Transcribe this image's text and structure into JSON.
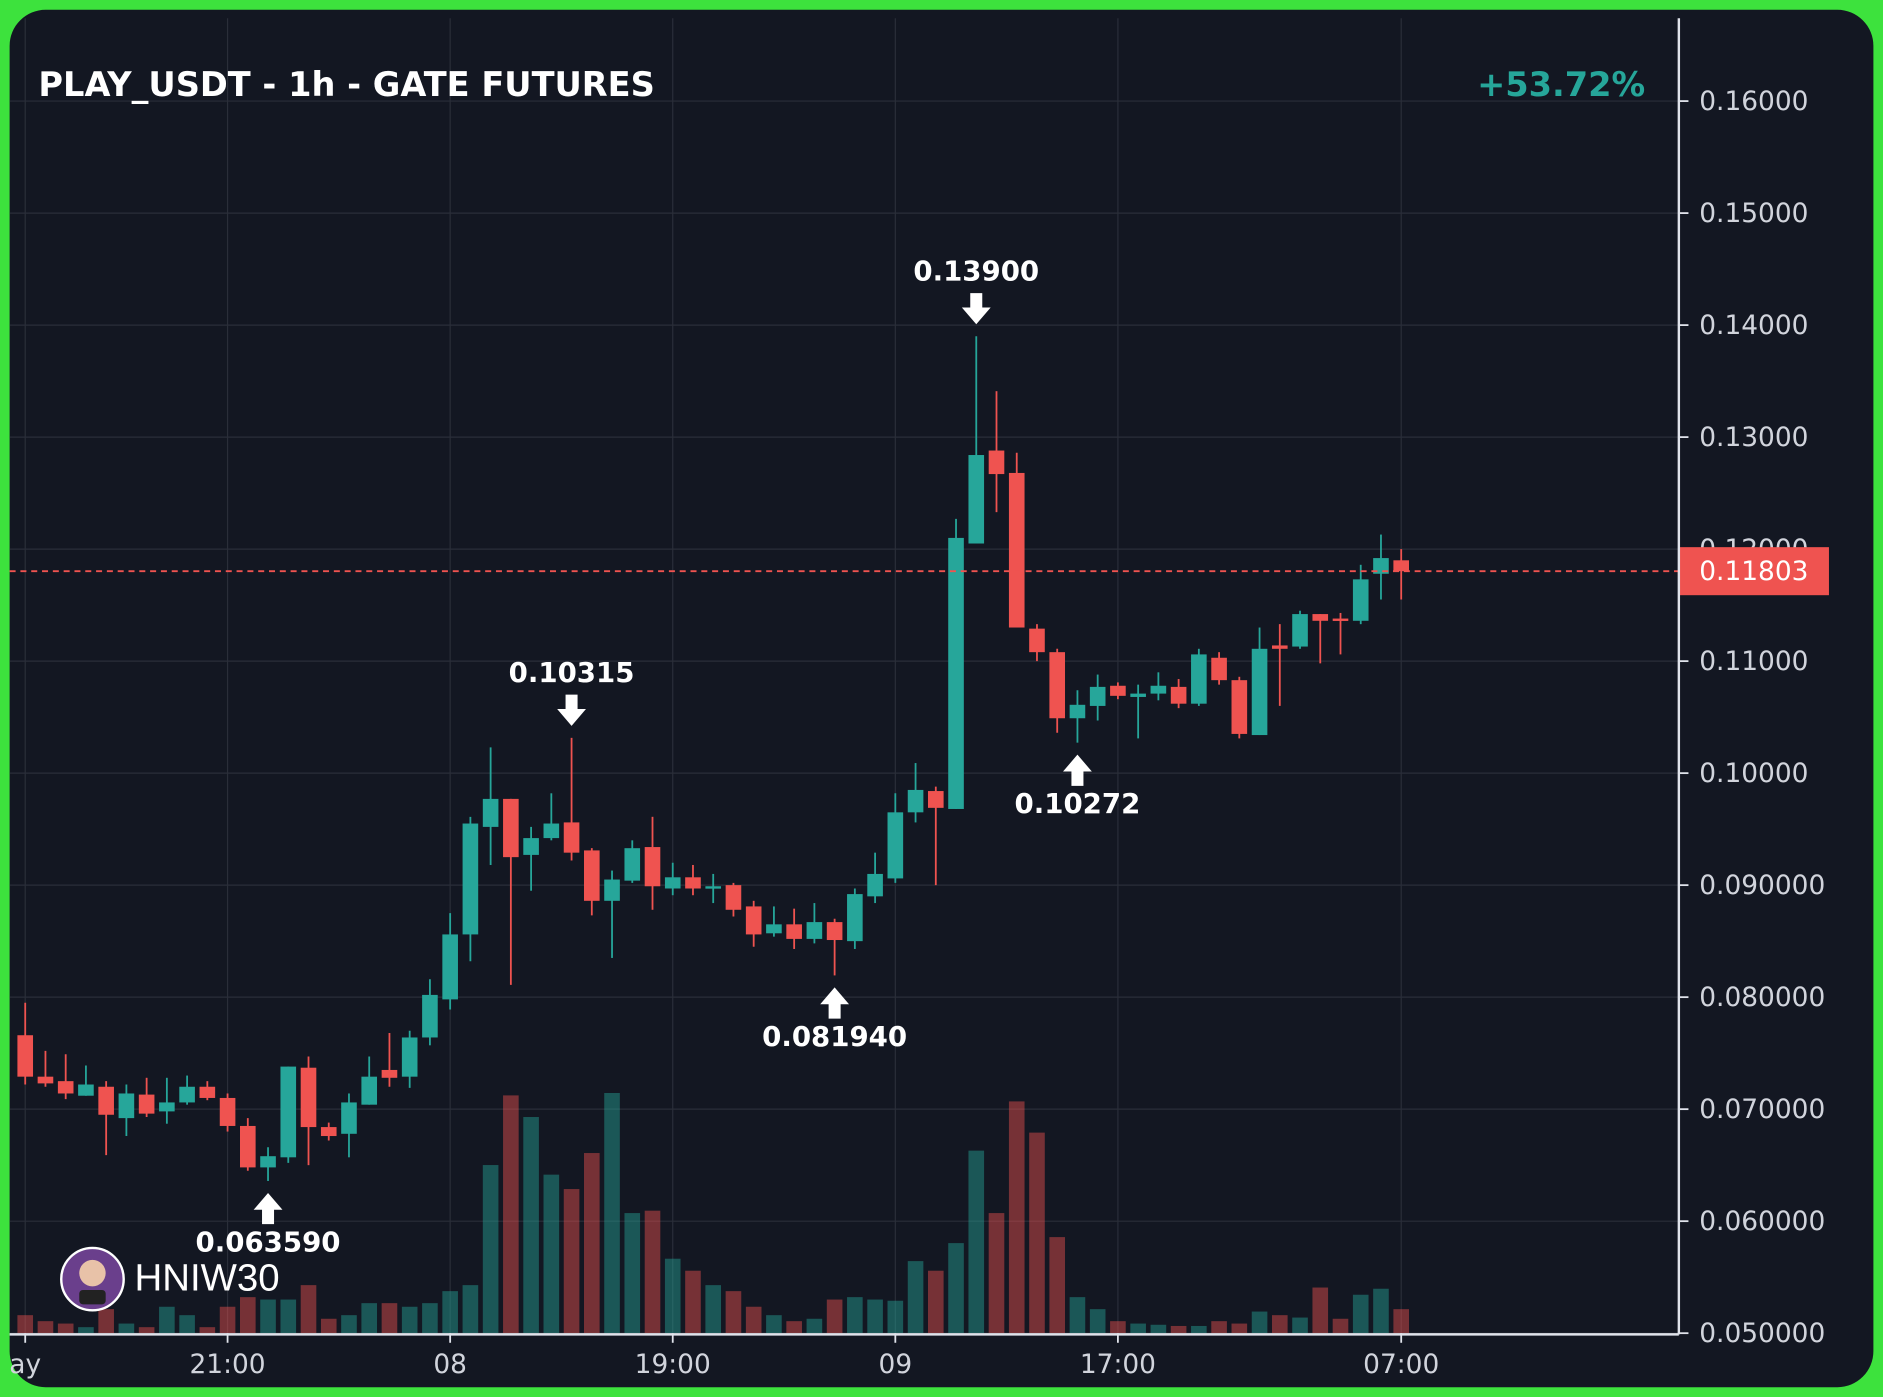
{
  "chart_data": {
    "type": "candlestick",
    "title": "PLAY_USDT - 1h - GATE FUTURES",
    "change": "+53.72%",
    "watermark": "HNIW30",
    "up_color": "#26a69a",
    "down_color": "#ef5350",
    "grid": true,
    "categories": [
      "ay",
      null,
      null,
      null,
      null,
      null,
      null,
      null,
      null,
      null,
      "21:00",
      null,
      null,
      null,
      null,
      null,
      null,
      null,
      null,
      null,
      null,
      "08",
      null,
      null,
      null,
      null,
      null,
      null,
      null,
      null,
      null,
      null,
      "19:00",
      null,
      null,
      null,
      null,
      null,
      null,
      null,
      null,
      null,
      null,
      "09",
      null,
      null,
      null,
      null,
      null,
      null,
      null,
      null,
      null,
      null,
      "17:00",
      null,
      null,
      null,
      null,
      null,
      null,
      null,
      null,
      null,
      null,
      null,
      null,
      null,
      "07:00"
    ],
    "open": [
      0.0766,
      0.0729,
      0.0725,
      0.0712,
      0.072,
      0.0692,
      0.0713,
      0.0698,
      0.0706,
      0.072,
      0.071,
      0.0685,
      0.0648,
      0.0657,
      0.0737,
      0.0684,
      0.0678,
      0.0704,
      0.0735,
      0.0729,
      0.0764,
      0.0798,
      0.0856,
      0.0952,
      0.0977,
      0.0927,
      0.0942,
      0.0956,
      0.0931,
      0.0886,
      0.0904,
      0.0934,
      0.0897,
      0.0907,
      0.0897,
      0.09,
      0.0881,
      0.0857,
      0.0865,
      0.0852,
      0.0867,
      0.085,
      0.089,
      0.0906,
      0.0965,
      0.0984,
      0.0968,
      0.1205,
      0.1288,
      0.1268,
      0.1129,
      0.1108,
      0.1049,
      0.106,
      0.1078,
      0.1068,
      0.1071,
      0.1077,
      0.1062,
      0.1103,
      0.1083,
      0.1034,
      0.1114,
      0.1113,
      0.1142,
      0.1138,
      0.1136,
      0.1178,
      0.119
    ],
    "high": [
      0.0795,
      0.0752,
      0.0749,
      0.0739,
      0.0725,
      0.0722,
      0.0728,
      0.0728,
      0.073,
      0.0725,
      0.0714,
      0.0692,
      0.0666,
      0.0738,
      0.0747,
      0.0688,
      0.0714,
      0.0747,
      0.0768,
      0.077,
      0.0816,
      0.0875,
      0.0961,
      0.1023,
      0.0977,
      0.0952,
      0.0982,
      0.10315,
      0.0933,
      0.0913,
      0.094,
      0.0961,
      0.092,
      0.0918,
      0.091,
      0.0902,
      0.0886,
      0.0881,
      0.0879,
      0.0884,
      0.087,
      0.0897,
      0.0929,
      0.0982,
      0.1009,
      0.0988,
      0.1227,
      0.139,
      0.1341,
      0.1286,
      0.1133,
      0.1111,
      0.1074,
      0.1088,
      0.1081,
      0.1079,
      0.109,
      0.1084,
      0.1111,
      0.1108,
      0.1086,
      0.113,
      0.1133,
      0.1145,
      0.1142,
      0.1143,
      0.1186,
      0.1213,
      0.12
    ],
    "low": [
      0.0722,
      0.072,
      0.0709,
      0.0712,
      0.0659,
      0.0676,
      0.0693,
      0.0687,
      0.0704,
      0.0708,
      0.068,
      0.0645,
      0.06359,
      0.0652,
      0.065,
      0.0672,
      0.0657,
      0.0704,
      0.072,
      0.0719,
      0.0757,
      0.0789,
      0.0832,
      0.0918,
      0.0811,
      0.0895,
      0.094,
      0.0922,
      0.0873,
      0.0835,
      0.0902,
      0.0878,
      0.0891,
      0.0891,
      0.0884,
      0.0872,
      0.0845,
      0.0854,
      0.0843,
      0.0848,
      0.08194,
      0.0843,
      0.0884,
      0.0902,
      0.0956,
      0.09,
      0.0968,
      0.1205,
      0.1233,
      0.113,
      0.11,
      0.1036,
      0.10272,
      0.1047,
      0.1066,
      0.1031,
      0.1065,
      0.1058,
      0.106,
      0.1079,
      0.1031,
      0.1034,
      0.106,
      0.1111,
      0.1098,
      0.1106,
      0.1133,
      0.1155,
      0.1155
    ],
    "close": [
      0.0729,
      0.0723,
      0.0714,
      0.0722,
      0.0695,
      0.0714,
      0.0696,
      0.0706,
      0.072,
      0.071,
      0.0685,
      0.0648,
      0.0658,
      0.0738,
      0.0684,
      0.0676,
      0.0706,
      0.0729,
      0.0728,
      0.0764,
      0.0802,
      0.0856,
      0.0955,
      0.0977,
      0.0925,
      0.0942,
      0.0955,
      0.0929,
      0.0886,
      0.0905,
      0.0933,
      0.0899,
      0.0907,
      0.0897,
      0.0899,
      0.0878,
      0.0856,
      0.0865,
      0.0852,
      0.0867,
      0.0851,
      0.0892,
      0.091,
      0.0965,
      0.0985,
      0.0969,
      0.121,
      0.1284,
      0.1267,
      0.113,
      0.1108,
      0.1049,
      0.1061,
      0.1077,
      0.1069,
      0.1071,
      0.1078,
      0.1062,
      0.1106,
      0.1083,
      0.1035,
      0.1111,
      0.1111,
      0.1142,
      0.1136,
      0.1136,
      0.1173,
      0.1192,
      0.11803
    ],
    "volume": [
      15,
      10,
      8,
      5,
      20,
      8,
      5,
      22,
      15,
      5,
      22,
      30,
      28,
      28,
      40,
      12,
      15,
      25,
      25,
      22,
      25,
      35,
      40,
      140,
      198,
      180,
      132,
      120,
      150,
      200,
      100,
      102,
      62,
      52,
      40,
      35,
      22,
      15,
      10,
      12,
      28,
      30,
      28,
      27,
      60,
      52,
      75,
      152,
      100,
      193,
      167,
      80,
      30,
      20,
      10,
      8,
      7,
      6,
      6,
      10,
      8,
      18,
      15,
      13,
      38,
      12,
      32,
      37,
      20
    ],
    "high_labels": [
      null,
      null,
      null,
      null,
      null,
      null,
      null,
      null,
      null,
      null,
      null,
      null,
      null,
      null,
      null,
      null,
      null,
      null,
      null,
      null,
      null,
      null,
      null,
      null,
      null,
      null,
      null,
      "0.10315",
      null,
      null,
      null,
      null,
      null,
      null,
      null,
      null,
      null,
      null,
      null,
      null,
      null,
      null,
      null,
      null,
      null,
      null,
      null,
      "0.13900",
      null,
      null,
      null,
      null,
      null,
      null,
      null,
      null,
      null,
      null,
      null,
      null,
      null,
      null,
      null,
      null,
      null,
      null,
      null,
      null,
      null
    ],
    "low_labels": [
      null,
      null,
      null,
      null,
      null,
      null,
      null,
      null,
      null,
      null,
      null,
      null,
      "0.063590",
      null,
      null,
      null,
      null,
      null,
      null,
      null,
      null,
      null,
      null,
      null,
      null,
      null,
      null,
      null,
      null,
      null,
      null,
      null,
      null,
      null,
      null,
      null,
      null,
      null,
      null,
      null,
      "0.081940",
      null,
      null,
      null,
      null,
      null,
      null,
      null,
      null,
      null,
      null,
      null,
      "0.10272",
      null,
      null,
      null,
      null,
      null,
      null,
      null,
      null,
      null,
      null,
      null,
      null,
      null,
      null,
      null,
      null
    ],
    "last_price": 0.11803,
    "ylim": [
      0.05,
      0.1674
    ],
    "yticks": [
      {
        "value": 0.05,
        "label": "0.050000"
      },
      {
        "value": 0.06,
        "label": "0.060000"
      },
      {
        "value": 0.07,
        "label": "0.070000"
      },
      {
        "value": 0.08,
        "label": "0.080000"
      },
      {
        "value": 0.09,
        "label": "0.090000"
      },
      {
        "value": 0.1,
        "label": "0.10000"
      },
      {
        "value": 0.11,
        "label": "0.11000"
      },
      {
        "value": 0.12,
        "label": "0.12000"
      },
      {
        "value": 0.13,
        "label": "0.13000"
      },
      {
        "value": 0.14,
        "label": "0.14000"
      },
      {
        "value": 0.15,
        "label": "0.15000"
      },
      {
        "value": 0.16,
        "label": "0.16000"
      }
    ]
  }
}
